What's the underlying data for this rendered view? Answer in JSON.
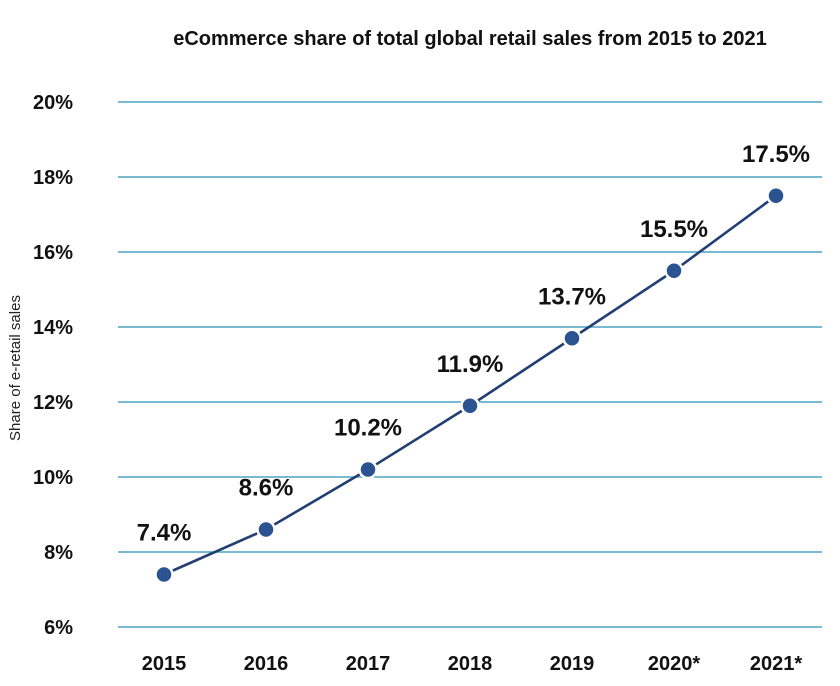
{
  "chart_data": {
    "type": "line",
    "title": "eCommerce share of total global retail sales from 2015 to 2021",
    "xlabel": "",
    "ylabel": "Share of e-retail sales",
    "categories": [
      "2015",
      "2016",
      "2017",
      "2018",
      "2019",
      "2020*",
      "2021*"
    ],
    "series": [
      {
        "values": [
          7.4,
          8.6,
          10.2,
          11.9,
          13.7,
          15.5,
          17.5
        ],
        "labels": [
          "7.4%",
          "8.6%",
          "10.2%",
          "11.9%",
          "13.7%",
          "15.5%",
          "17.5%"
        ]
      }
    ],
    "ylim": [
      6,
      20
    ],
    "yticks": [
      6,
      8,
      10,
      12,
      14,
      16,
      18,
      20
    ],
    "ytick_labels": [
      "6%",
      "8%",
      "10%",
      "12%",
      "14%",
      "16%",
      "18%",
      "20%"
    ],
    "grid": true,
    "legend": "none",
    "colors": {
      "line": "#223f73",
      "marker": "#2c5391",
      "grid": "#4aa3c4",
      "text": "#111111"
    }
  }
}
